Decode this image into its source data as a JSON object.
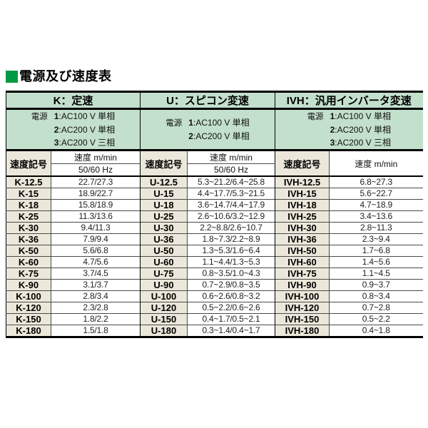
{
  "page": {
    "title": "電源及び速度表"
  },
  "colors": {
    "accent_green": "#009944",
    "header_green": "#c3e0cc",
    "symbol_beige": "#ebe7da",
    "border": "#000000",
    "row_line": "#4a4a4a",
    "value_text": "#1f1f1f"
  },
  "table": {
    "groups": [
      {
        "id": "K",
        "title": "K：定速",
        "power": {
          "label": "電源",
          "items": [
            {
              "num": "1",
              "desc": ":AC100 V 単相"
            },
            {
              "num": "2",
              "desc": ":AC200 V 単相"
            },
            {
              "num": "3",
              "desc": ":AC200 V 三相"
            }
          ]
        },
        "symbol_header": "速度記号",
        "speed_header": "速度 m/min",
        "hz_header": "50/60 Hz",
        "rows": [
          [
            "K-12.5",
            "22.7/27.3"
          ],
          [
            "K-15",
            "18.9/22.7"
          ],
          [
            "K-18",
            "15.8/18.9"
          ],
          [
            "K-25",
            "11.3/13.6"
          ],
          [
            "K-30",
            "9.4/11.3"
          ],
          [
            "K-36",
            "7.9/9.4"
          ],
          [
            "K-50",
            "5.6/6.8"
          ],
          [
            "K-60",
            "4.7/5.6"
          ],
          [
            "K-75",
            "3.7/4.5"
          ],
          [
            "K-90",
            "3.1/3.7"
          ],
          [
            "K-100",
            "2.8/3.4"
          ],
          [
            "K-120",
            "2.3/2.8"
          ],
          [
            "K-150",
            "1.8/2.2"
          ],
          [
            "K-180",
            "1.5/1.8"
          ]
        ]
      },
      {
        "id": "U",
        "title": "U：スピコン変速",
        "power": {
          "label": "電源",
          "items": [
            {
              "num": "1",
              "desc": ":AC100 V 単相"
            },
            {
              "num": "2",
              "desc": ":AC200 V 単相"
            }
          ]
        },
        "symbol_header": "速度記号",
        "speed_header": "速度 m/min",
        "hz_header": "50/60 Hz",
        "rows": [
          [
            "U-12.5",
            "5.3~21.2/6.4~25.8"
          ],
          [
            "U-15",
            "4.4~17.7/5.3~21.5"
          ],
          [
            "U-18",
            "3.6~14.7/4.4~17.9"
          ],
          [
            "U-25",
            "2.6~10.6/3.2~12.9"
          ],
          [
            "U-30",
            "2.2~8.8/2.6~10.7"
          ],
          [
            "U-36",
            "1.8~7.3/2.2~8.9"
          ],
          [
            "U-50",
            "1.3~5.3/1.6~6.4"
          ],
          [
            "U-60",
            "1.1~4.4/1.3~5.3"
          ],
          [
            "U-75",
            "0.8~3.5/1.0~4.3"
          ],
          [
            "U-90",
            "0.7~2.9/0.8~3.5"
          ],
          [
            "U-100",
            "0.6~2.6/0.8~3.2"
          ],
          [
            "U-120",
            "0.5~2.2/0.6~2.6"
          ],
          [
            "U-150",
            "0.4~1.7/0.5~2.1"
          ],
          [
            "U-180",
            "0.3~1.4/0.4~1.7"
          ]
        ]
      },
      {
        "id": "IVH",
        "title": "IVH：汎用インバータ変速",
        "power": {
          "label": "電源",
          "items": [
            {
              "num": "1",
              "desc": ":AC100 V 単相"
            },
            {
              "num": "2",
              "desc": ":AC200 V 単相"
            },
            {
              "num": "3",
              "desc": ":AC200 V 三相"
            }
          ]
        },
        "symbol_header": "速度記号",
        "speed_header": "速度 m/min",
        "hz_header": null,
        "rows": [
          [
            "IVH-12.5",
            "6.8~27.3"
          ],
          [
            "IVH-15",
            "5.6~22.7"
          ],
          [
            "IVH-18",
            "4.7~18.9"
          ],
          [
            "IVH-25",
            "3.4~13.6"
          ],
          [
            "IVH-30",
            "2.8~11.3"
          ],
          [
            "IVH-36",
            "2.3~9.4"
          ],
          [
            "IVH-50",
            "1.7~6.8"
          ],
          [
            "IVH-60",
            "1.4~5.6"
          ],
          [
            "IVH-75",
            "1.1~4.5"
          ],
          [
            "IVH-90",
            "0.9~3.7"
          ],
          [
            "IVH-100",
            "0.8~3.4"
          ],
          [
            "IVH-120",
            "0.7~2.8"
          ],
          [
            "IVH-150",
            "0.5~2.2"
          ],
          [
            "IVH-180",
            "0.4~1.8"
          ]
        ]
      }
    ]
  }
}
